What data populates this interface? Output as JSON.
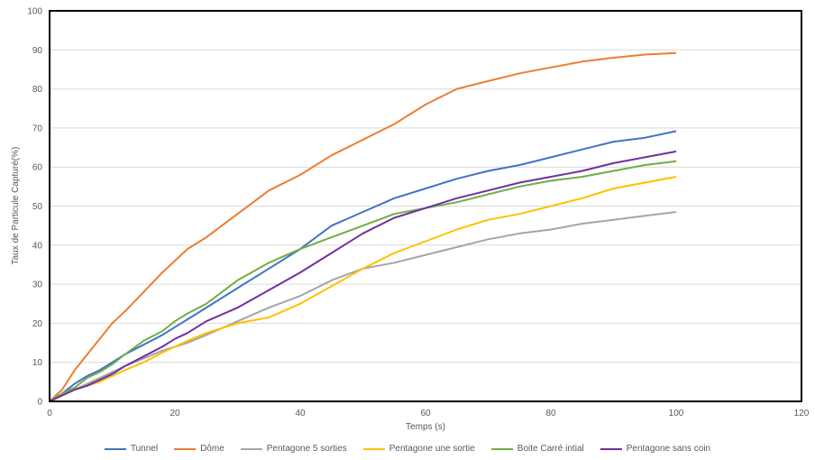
{
  "chart_data": {
    "type": "line",
    "xlabel": "Temps (s)",
    "ylabel": "Taux de Particule Capturé(%)",
    "xlim": [
      0,
      120
    ],
    "ylim": [
      0,
      100
    ],
    "x_ticks": [
      "0",
      "20",
      "40",
      "60",
      "80",
      "100",
      "120"
    ],
    "y_ticks": [
      "0",
      "10",
      "20",
      "30",
      "40",
      "50",
      "60",
      "70",
      "80",
      "90",
      "100"
    ],
    "grid": "horizontal",
    "legend_position": "bottom",
    "x": [
      0,
      2,
      4,
      6,
      8,
      10,
      12,
      15,
      18,
      20,
      22,
      25,
      30,
      35,
      40,
      45,
      50,
      55,
      60,
      65,
      70,
      75,
      80,
      85,
      90,
      95,
      100
    ],
    "series": [
      {
        "name": "Tunnel",
        "color": "#4472c4",
        "values": [
          0,
          2,
          4.5,
          6.5,
          8,
          10,
          12,
          14.5,
          17,
          19,
          21,
          24,
          29,
          34,
          39,
          45,
          48.5,
          52,
          54.5,
          57,
          59,
          60.5,
          62.5,
          64.5,
          66.5,
          67.5,
          69.2
        ]
      },
      {
        "name": "Dôme",
        "color": "#ed7d31",
        "values": [
          0,
          3,
          8,
          12,
          16,
          20,
          23,
          28,
          33,
          36,
          39,
          42,
          48,
          54,
          58,
          63,
          67,
          71,
          76,
          80,
          82,
          84,
          85.5,
          87,
          88,
          88.8,
          89.2
        ]
      },
      {
        "name": "Pentagone 5 sorties",
        "color": "#a5a5a5",
        "values": [
          0,
          1.5,
          3,
          4.5,
          6,
          7.5,
          9,
          11,
          13,
          14,
          15,
          17,
          20.5,
          24,
          27,
          31,
          34,
          35.5,
          37.5,
          39.5,
          41.5,
          43,
          44,
          45.5,
          46.5,
          47.5,
          48.5
        ]
      },
      {
        "name": "Pentagone une sortie",
        "color": "#ffc000",
        "values": [
          0,
          1.5,
          3,
          4,
          5,
          6.5,
          8,
          10,
          12.5,
          14,
          15.5,
          17.5,
          20,
          21.5,
          25,
          29.5,
          34,
          38,
          41,
          44,
          46.5,
          48,
          50,
          52,
          54.5,
          56,
          57.5
        ]
      },
      {
        "name": "Boite Carré intial",
        "color": "#70ad47",
        "values": [
          0,
          2,
          3.5,
          6,
          7.5,
          9.5,
          12,
          15.5,
          18,
          20.5,
          22.5,
          25,
          31,
          35.5,
          39,
          42,
          45,
          48,
          49.5,
          51,
          53,
          55,
          56.5,
          57.5,
          59,
          60.5,
          61.5
        ]
      },
      {
        "name": "Pentagone sans coin",
        "color": "#7030a0",
        "values": [
          0,
          1.5,
          3,
          4,
          5.5,
          7,
          9,
          11.5,
          14,
          16,
          17.5,
          20.5,
          24,
          28.5,
          33,
          38,
          43,
          47,
          49.5,
          52,
          54,
          56,
          57.5,
          59,
          61,
          62.5,
          64
        ]
      }
    ]
  }
}
